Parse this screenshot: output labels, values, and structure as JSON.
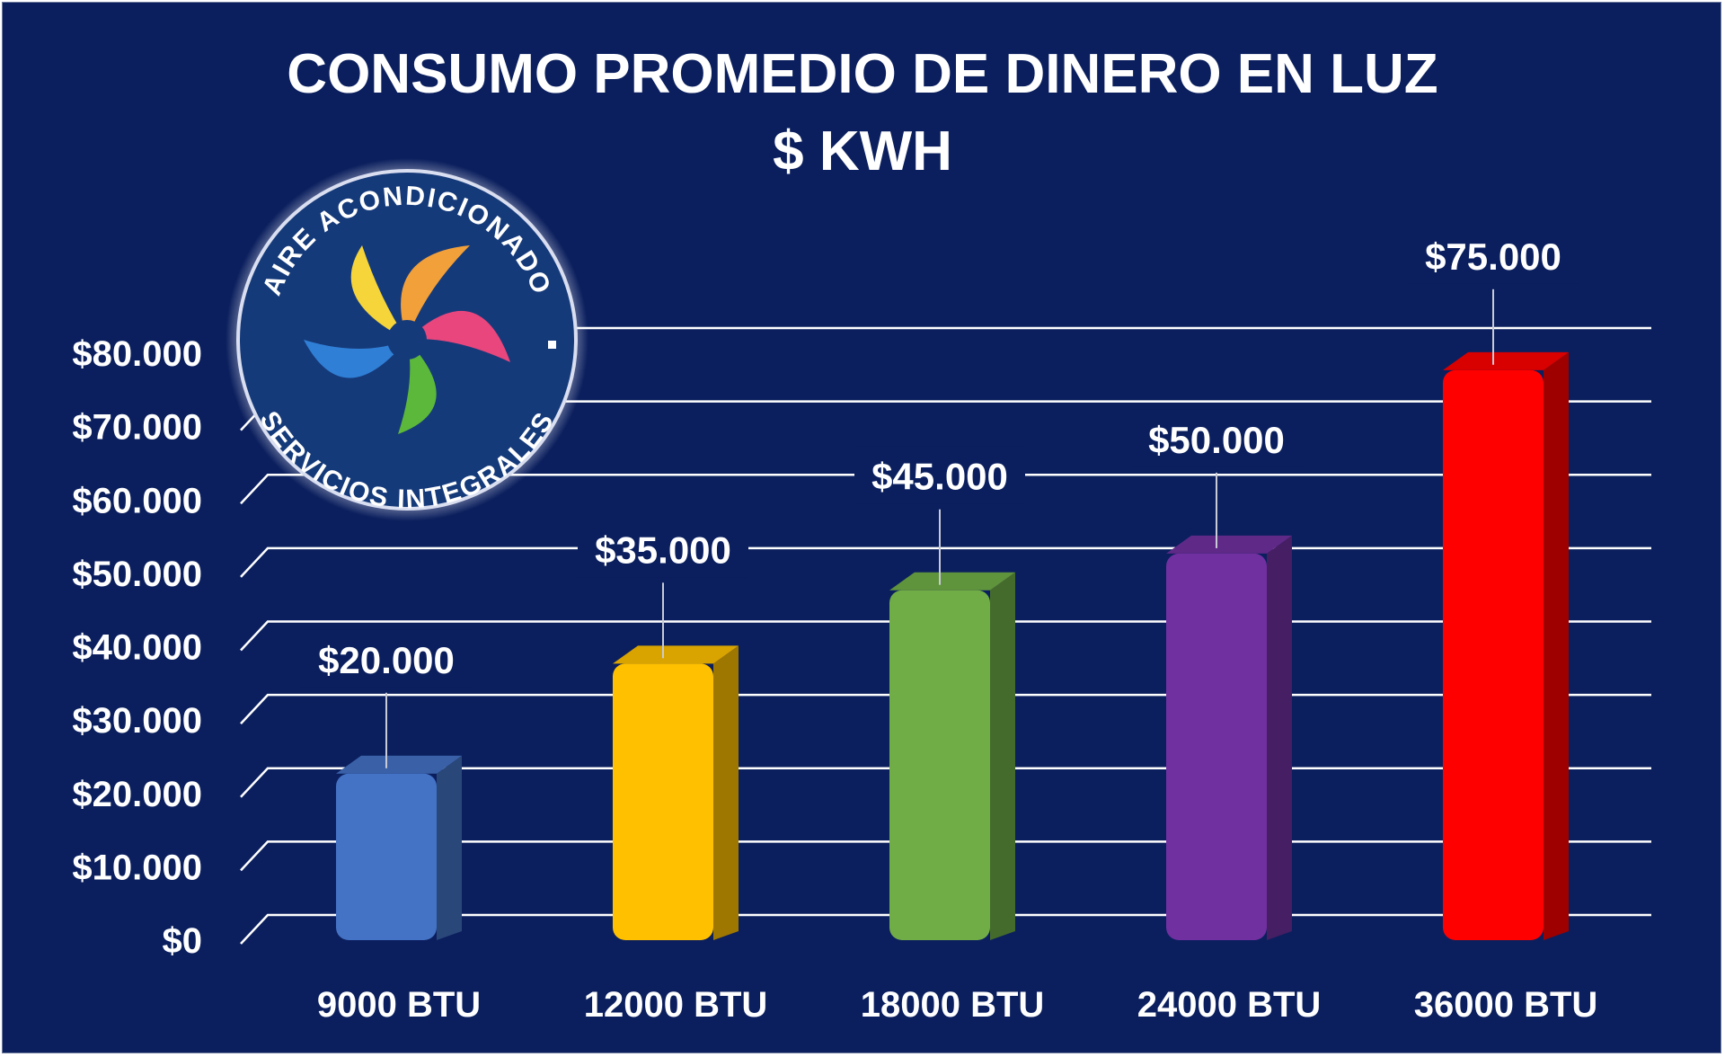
{
  "chart_data": {
    "type": "bar",
    "title": "CONSUMO PROMEDIO DE DINERO EN LUZ",
    "subtitle": "$ KWH",
    "categories": [
      "9000 BTU",
      "12000 BTU",
      "18000 BTU",
      "24000 BTU",
      "36000 BTU"
    ],
    "values": [
      20000,
      35000,
      45000,
      50000,
      75000
    ],
    "value_labels": [
      "$20.000",
      "$35.000",
      "$45.000",
      "$50.000",
      "$75.000"
    ],
    "bar_colors": [
      "#4472c4",
      "#ffc000",
      "#70ad47",
      "#7030a0",
      "#ff0000"
    ],
    "ylim": [
      0,
      80000
    ],
    "yticks": [
      0,
      10000,
      20000,
      30000,
      40000,
      50000,
      60000,
      70000,
      80000
    ],
    "ytick_labels": [
      "$0",
      "$10.000",
      "$20.000",
      "$30.000",
      "$40.000",
      "$50.000",
      "$60.000",
      "$70.000",
      "$80.000"
    ],
    "grid": true,
    "background_color": "#0b1f5e",
    "gridline_color": "#ffffff"
  },
  "logo": {
    "top_text": "AIRE ACONDICIONADO",
    "bottom_text": "SERVICIOS INTEGRALES"
  }
}
